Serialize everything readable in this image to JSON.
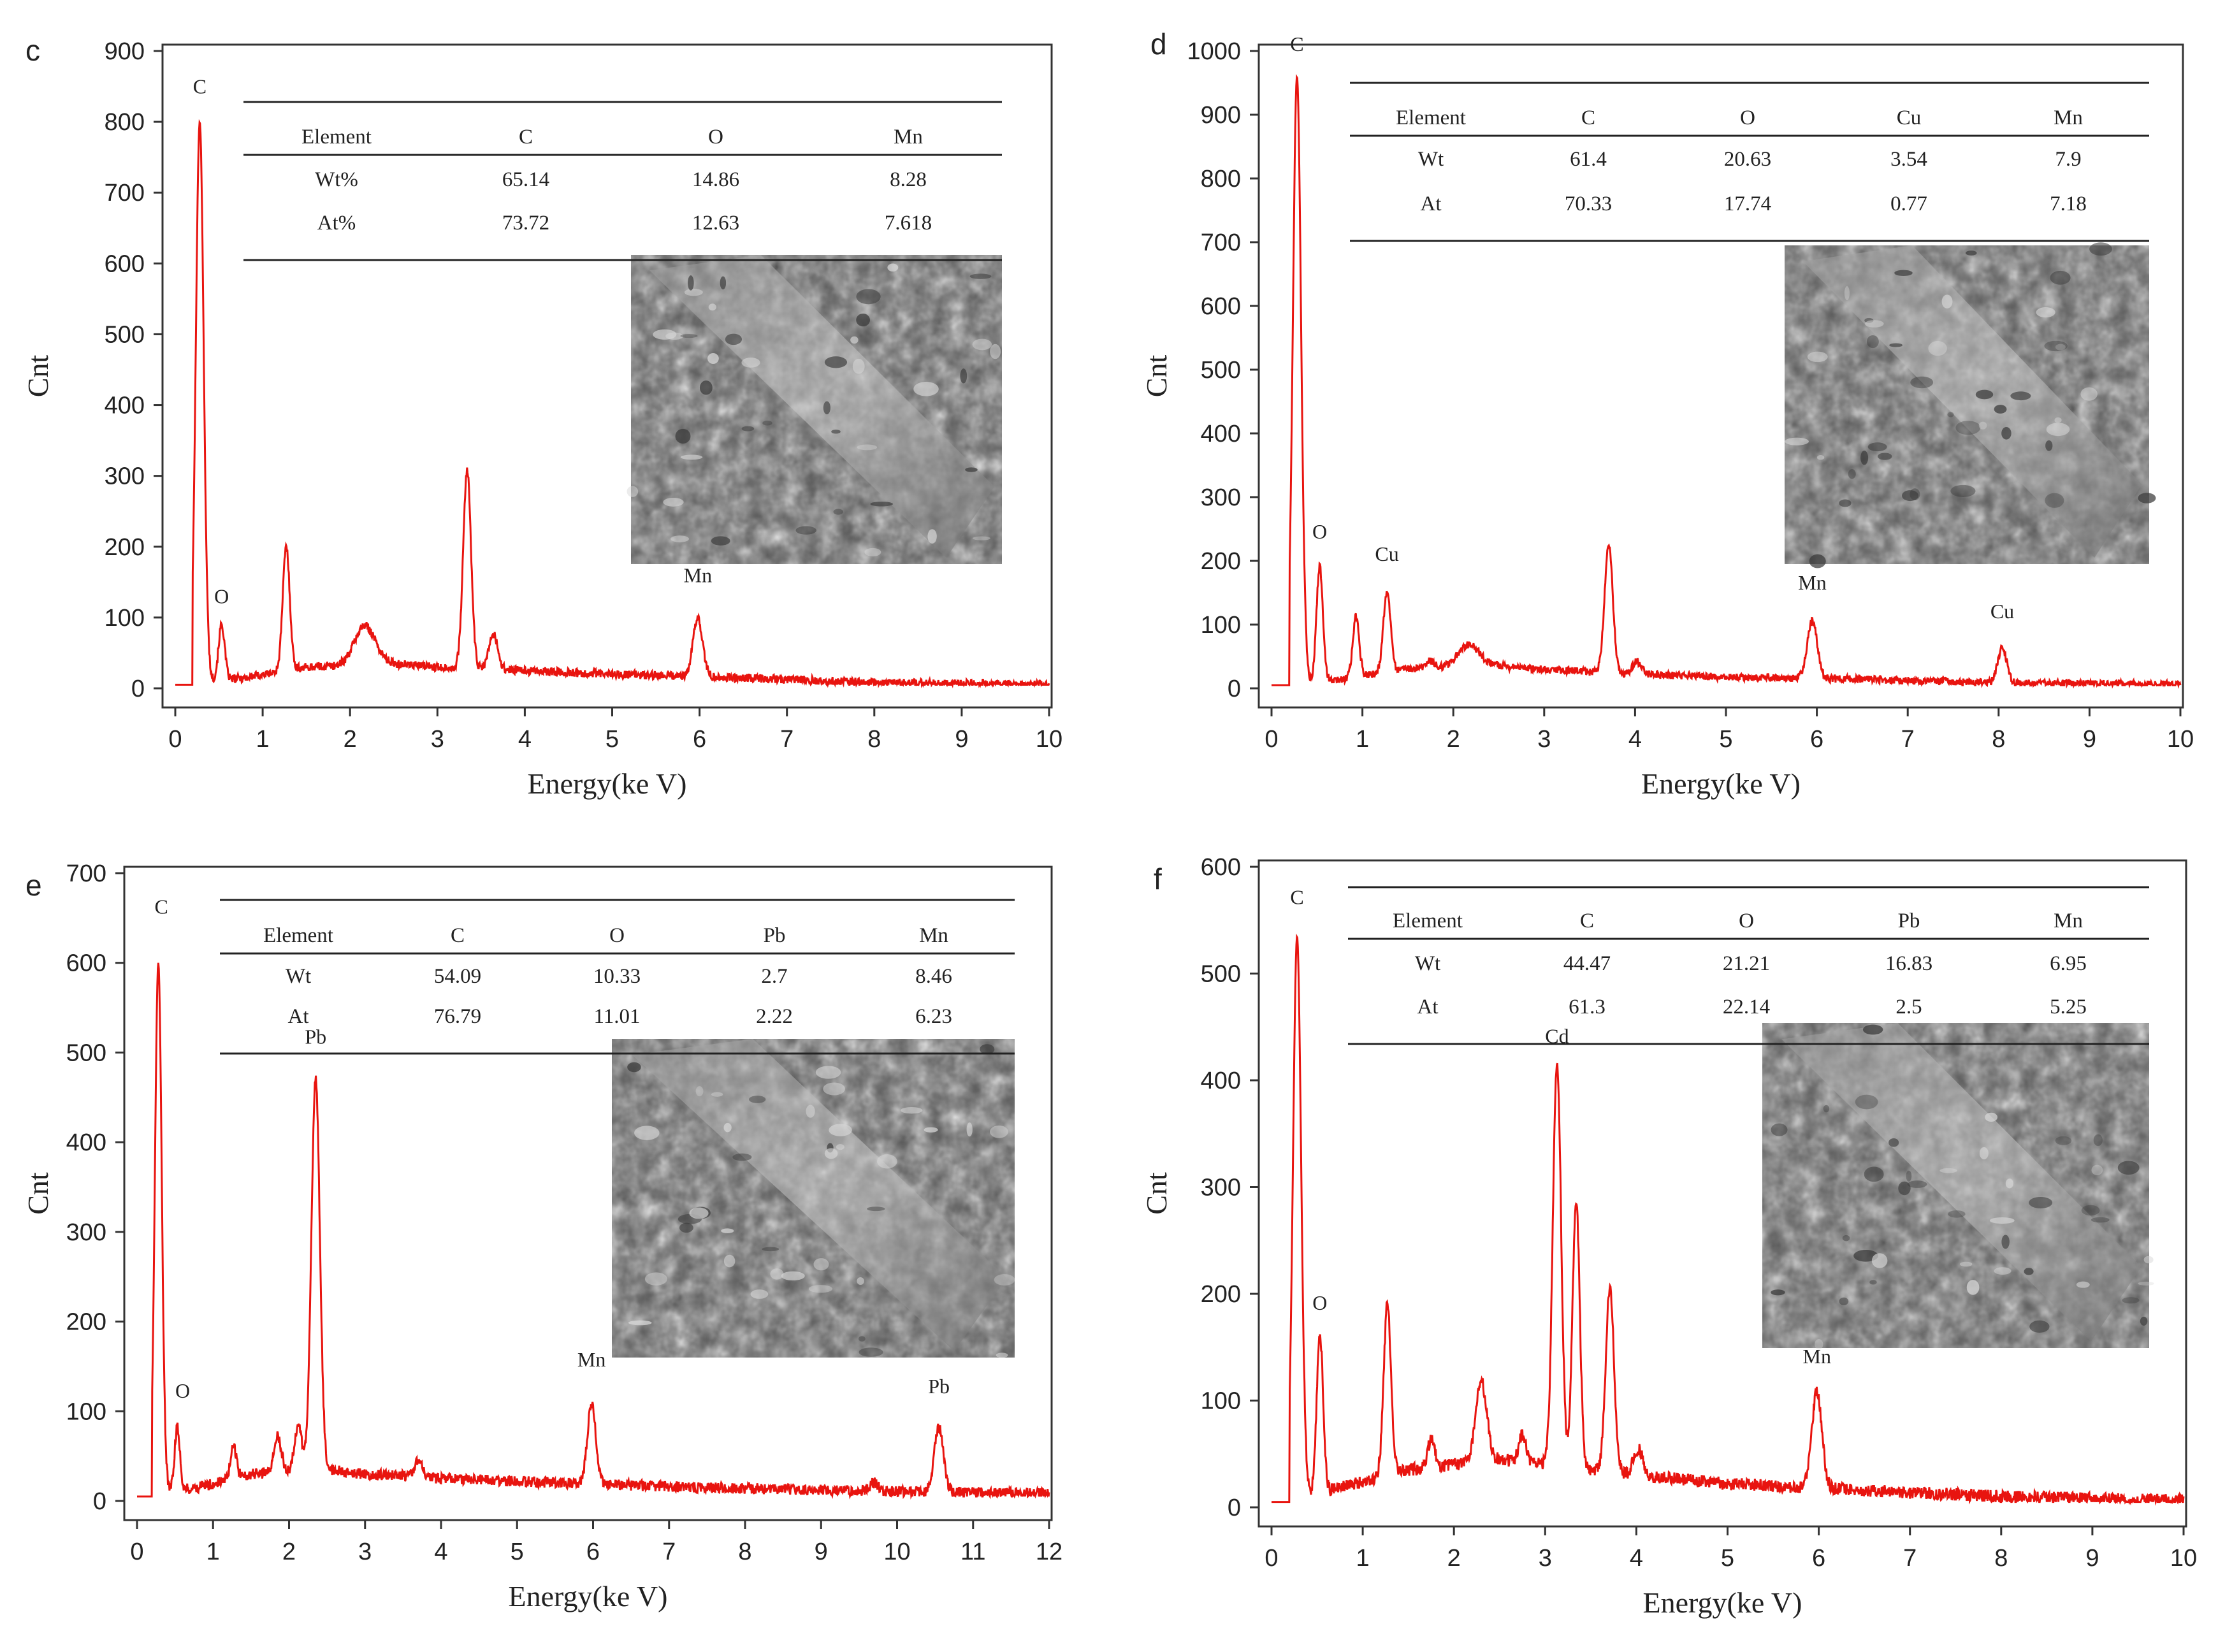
{
  "chart_data": [
    {
      "panel": "c",
      "type": "line",
      "xlabel": "Energy(ke V)",
      "ylabel": "Cnt",
      "xlim": [
        0,
        10
      ],
      "ylim": [
        0,
        900
      ],
      "xticks": [
        0,
        1,
        2,
        3,
        4,
        5,
        6,
        7,
        8,
        9,
        10
      ],
      "yticks": [
        0,
        100,
        200,
        300,
        400,
        500,
        600,
        700,
        800,
        900
      ],
      "baseline_end": 5,
      "peaks": [
        {
          "x": 0.28,
          "y": 800,
          "w": 0.045
        },
        {
          "x": 0.53,
          "y": 78,
          "w": 0.035
        },
        {
          "x": 1.27,
          "y": 175,
          "w": 0.04
        },
        {
          "x": 2.17,
          "y": 55,
          "w": 0.12
        },
        {
          "x": 3.34,
          "y": 280,
          "w": 0.045
        },
        {
          "x": 3.64,
          "y": 50,
          "w": 0.05
        },
        {
          "x": 5.98,
          "y": 82,
          "w": 0.055
        }
      ],
      "background": [
        [
          0.35,
          10
        ],
        [
          0.8,
          15
        ],
        [
          1.5,
          30
        ],
        [
          2.5,
          35
        ],
        [
          3.0,
          30
        ],
        [
          4.0,
          25
        ],
        [
          5.0,
          20
        ],
        [
          6.5,
          15
        ],
        [
          8.0,
          8
        ],
        [
          10.0,
          5
        ]
      ],
      "noise": 6,
      "peak_labels": [
        {
          "text": "C",
          "x": 0.28,
          "y": 840
        },
        {
          "text": "O",
          "x": 0.53,
          "y": 120
        },
        {
          "text": "Mn",
          "x": 5.98,
          "y": 150
        }
      ],
      "table": {
        "headers": [
          "Element",
          "C",
          "O",
          "Mn"
        ],
        "rows": [
          [
            "Wt%",
            "65.14",
            "14.86",
            "8.28"
          ],
          [
            "At%",
            "73.72",
            "12.63",
            "7.618"
          ]
        ]
      }
    },
    {
      "panel": "d",
      "type": "line",
      "xlabel": "Energy(ke V)",
      "ylabel": "Cnt",
      "xlim": [
        0,
        10
      ],
      "ylim": [
        0,
        1000
      ],
      "xticks": [
        0,
        1,
        2,
        3,
        4,
        5,
        6,
        7,
        8,
        9,
        10
      ],
      "yticks": [
        0,
        100,
        200,
        300,
        400,
        500,
        600,
        700,
        800,
        900,
        1000
      ],
      "baseline_end": 5,
      "peaks": [
        {
          "x": 0.28,
          "y": 960,
          "w": 0.045
        },
        {
          "x": 0.53,
          "y": 180,
          "w": 0.035
        },
        {
          "x": 0.93,
          "y": 95,
          "w": 0.035
        },
        {
          "x": 1.27,
          "y": 125,
          "w": 0.04
        },
        {
          "x": 1.75,
          "y": 12,
          "w": 0.05
        },
        {
          "x": 2.17,
          "y": 35,
          "w": 0.12
        },
        {
          "x": 3.71,
          "y": 200,
          "w": 0.045
        },
        {
          "x": 4.02,
          "y": 20,
          "w": 0.05
        },
        {
          "x": 5.95,
          "y": 90,
          "w": 0.055
        },
        {
          "x": 8.04,
          "y": 55,
          "w": 0.05
        }
      ],
      "background": [
        [
          0.35,
          10
        ],
        [
          0.8,
          15
        ],
        [
          1.5,
          30
        ],
        [
          2.5,
          35
        ],
        [
          3.0,
          30
        ],
        [
          4.0,
          22
        ],
        [
          5.0,
          18
        ],
        [
          6.5,
          14
        ],
        [
          8.0,
          8
        ],
        [
          10.0,
          6
        ]
      ],
      "noise": 6,
      "peak_labels": [
        {
          "text": "C",
          "x": 0.28,
          "y": 1000
        },
        {
          "text": "O",
          "x": 0.53,
          "y": 235
        },
        {
          "text": "Cu",
          "x": 1.27,
          "y": 200
        },
        {
          "text": "Mn",
          "x": 5.95,
          "y": 155
        },
        {
          "text": "Cu",
          "x": 8.04,
          "y": 110
        }
      ],
      "table": {
        "headers": [
          "Element",
          "C",
          "O",
          "Cu",
          "Mn"
        ],
        "rows": [
          [
            "Wt",
            "61.4",
            "20.63",
            "3.54",
            "7.9"
          ],
          [
            "At",
            "70.33",
            "17.74",
            "0.77",
            "7.18"
          ]
        ]
      }
    },
    {
      "panel": "e",
      "type": "line",
      "xlabel": "Energy(ke V)",
      "ylabel": "Cnt",
      "xlim": [
        0,
        12
      ],
      "ylim": [
        0,
        700
      ],
      "xticks": [
        0,
        1,
        2,
        3,
        4,
        5,
        6,
        7,
        8,
        9,
        10,
        11,
        12
      ],
      "yticks": [
        0,
        100,
        200,
        300,
        400,
        500,
        600,
        700
      ],
      "baseline_end": 5,
      "peaks": [
        {
          "x": 0.28,
          "y": 600,
          "w": 0.045
        },
        {
          "x": 0.53,
          "y": 70,
          "w": 0.035
        },
        {
          "x": 1.27,
          "y": 35,
          "w": 0.04
        },
        {
          "x": 1.85,
          "y": 40,
          "w": 0.05
        },
        {
          "x": 2.12,
          "y": 50,
          "w": 0.05
        },
        {
          "x": 2.35,
          "y": 440,
          "w": 0.055
        },
        {
          "x": 3.7,
          "y": 20,
          "w": 0.05
        },
        {
          "x": 5.98,
          "y": 90,
          "w": 0.055
        },
        {
          "x": 9.7,
          "y": 10,
          "w": 0.05
        },
        {
          "x": 10.55,
          "y": 72,
          "w": 0.06
        }
      ],
      "background": [
        [
          0.35,
          10
        ],
        [
          0.8,
          15
        ],
        [
          1.5,
          30
        ],
        [
          2.5,
          35
        ],
        [
          3.0,
          30
        ],
        [
          4.0,
          25
        ],
        [
          5.0,
          22
        ],
        [
          7.0,
          16
        ],
        [
          9.0,
          12
        ],
        [
          12.0,
          8
        ]
      ],
      "noise": 6,
      "peak_labels": [
        {
          "text": "C",
          "x": 0.32,
          "y": 655
        },
        {
          "text": "O",
          "x": 0.6,
          "y": 115
        },
        {
          "text": "Pb",
          "x": 2.35,
          "y": 510
        },
        {
          "text": "Mn",
          "x": 5.98,
          "y": 150
        },
        {
          "text": "Pb",
          "x": 10.55,
          "y": 120
        }
      ],
      "table": {
        "headers": [
          "Element",
          "C",
          "O",
          "Pb",
          "Mn"
        ],
        "rows": [
          [
            "Wt",
            "54.09",
            "10.33",
            "2.7",
            "8.46"
          ],
          [
            "At",
            "76.79",
            "11.01",
            "2.22",
            "6.23"
          ]
        ]
      }
    },
    {
      "panel": "f",
      "type": "line",
      "xlabel": "Energy(ke V)",
      "ylabel": "Cnt",
      "xlim": [
        0,
        10
      ],
      "ylim": [
        0,
        600
      ],
      "xticks": [
        0,
        1,
        2,
        3,
        4,
        5,
        6,
        7,
        8,
        9,
        10
      ],
      "yticks": [
        0,
        100,
        200,
        300,
        400,
        500,
        600
      ],
      "baseline_end": 5,
      "peaks": [
        {
          "x": 0.28,
          "y": 535,
          "w": 0.045
        },
        {
          "x": 0.53,
          "y": 150,
          "w": 0.035
        },
        {
          "x": 1.27,
          "y": 160,
          "w": 0.04
        },
        {
          "x": 1.75,
          "y": 25,
          "w": 0.04
        },
        {
          "x": 2.3,
          "y": 75,
          "w": 0.06
        },
        {
          "x": 2.75,
          "y": 25,
          "w": 0.04
        },
        {
          "x": 3.13,
          "y": 380,
          "w": 0.045
        },
        {
          "x": 3.34,
          "y": 250,
          "w": 0.04
        },
        {
          "x": 3.71,
          "y": 175,
          "w": 0.045
        },
        {
          "x": 4.02,
          "y": 25,
          "w": 0.05
        },
        {
          "x": 5.98,
          "y": 90,
          "w": 0.055
        }
      ],
      "background": [
        [
          0.35,
          10
        ],
        [
          0.8,
          20
        ],
        [
          1.5,
          35
        ],
        [
          2.5,
          45
        ],
        [
          3.0,
          40
        ],
        [
          4.0,
          30
        ],
        [
          5.0,
          22
        ],
        [
          6.5,
          16
        ],
        [
          8.0,
          10
        ],
        [
          10.0,
          6
        ]
      ],
      "noise": 6,
      "peak_labels": [
        {
          "text": "C",
          "x": 0.28,
          "y": 565
        },
        {
          "text": "O",
          "x": 0.53,
          "y": 185
        },
        {
          "text": "Cd",
          "x": 3.13,
          "y": 435
        },
        {
          "text": "Mn",
          "x": 5.98,
          "y": 135
        }
      ],
      "table": {
        "headers": [
          "Element",
          "C",
          "O",
          "Pb",
          "Mn"
        ],
        "rows": [
          [
            "Wt",
            "44.47",
            "21.21",
            "16.83",
            "6.95"
          ],
          [
            "At",
            "61.3",
            "22.14",
            "2.5",
            "5.25"
          ]
        ]
      }
    }
  ]
}
